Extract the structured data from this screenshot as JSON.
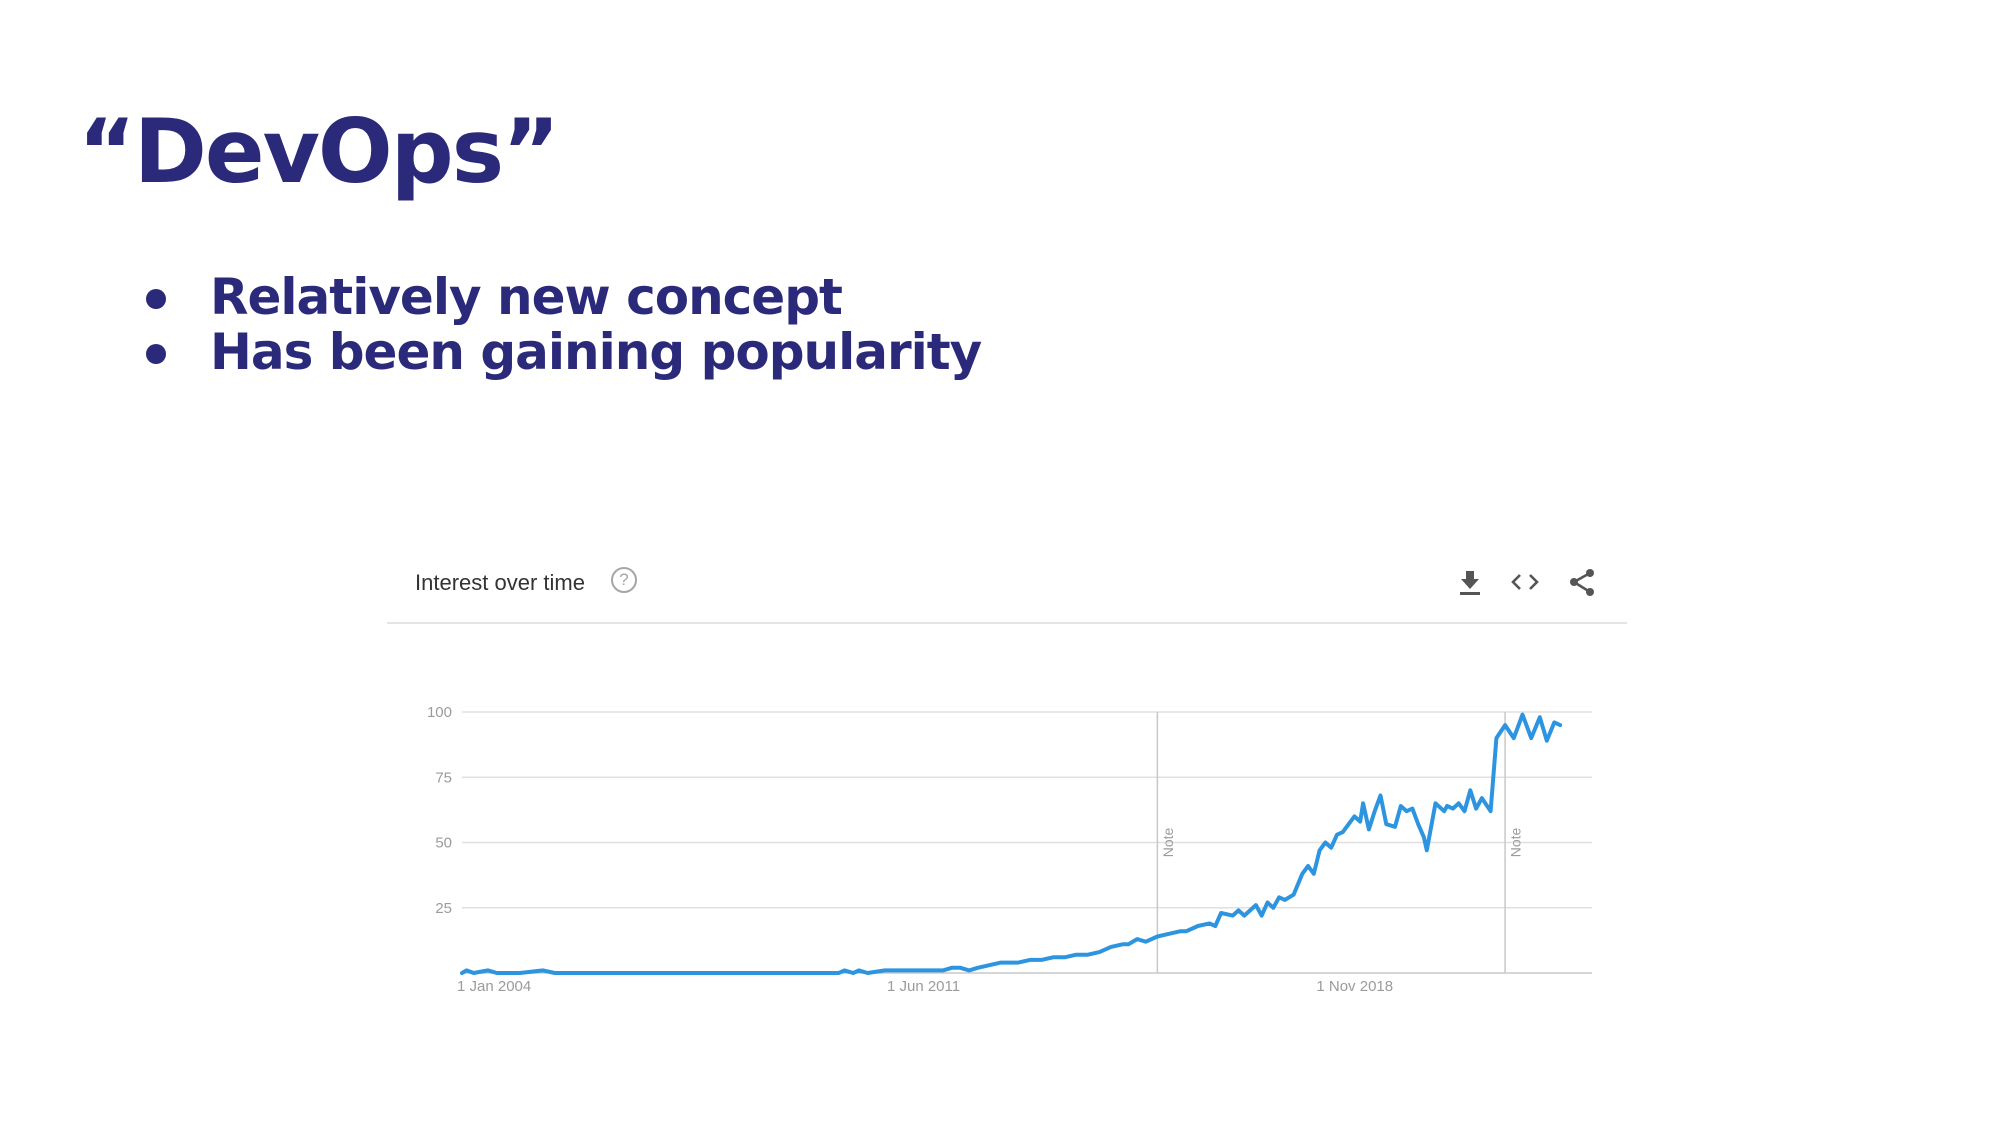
{
  "slide": {
    "title": "“DevOps”",
    "bullets": [
      "Relatively new concept",
      "Has been gaining popularity"
    ]
  },
  "widget": {
    "title": "Interest over time",
    "help_glyph": "?",
    "icons": [
      "download-icon",
      "embed-code-icon",
      "share-icon"
    ]
  },
  "colors": {
    "text": "#2b2a7a",
    "line": "#2d94e0",
    "grid": "#e0e0e0",
    "axis_text": "#9b9b9b"
  },
  "chart_data": {
    "type": "line",
    "title": "Interest over time",
    "xlabel": "",
    "ylabel": "",
    "ylim": [
      0,
      100
    ],
    "yticks": [
      25,
      50,
      75,
      100
    ],
    "xticks": [
      {
        "label": "1 Jan 2004",
        "t": 2004.0
      },
      {
        "label": "1 Jun 2011",
        "t": 2011.42
      },
      {
        "label": "1 Nov 2018",
        "t": 2018.83
      }
    ],
    "xlim": [
      2004.0,
      2023.5
    ],
    "notes": [
      {
        "label": "Note",
        "t": 2016.0
      },
      {
        "label": "Note",
        "t": 2022.0
      }
    ],
    "grid": true,
    "series": [
      {
        "points": [
          [
            2004.0,
            0
          ],
          [
            2004.08,
            1
          ],
          [
            2004.2,
            0
          ],
          [
            2004.45,
            1
          ],
          [
            2004.6,
            0
          ],
          [
            2005.0,
            0
          ],
          [
            2005.4,
            1
          ],
          [
            2005.6,
            0
          ],
          [
            2007.0,
            0
          ],
          [
            2009.0,
            0
          ],
          [
            2010.5,
            0
          ],
          [
            2010.6,
            1
          ],
          [
            2010.75,
            0
          ],
          [
            2010.85,
            1
          ],
          [
            2011.0,
            0
          ],
          [
            2011.3,
            1
          ],
          [
            2011.8,
            1
          ],
          [
            2012.3,
            1
          ],
          [
            2012.45,
            2
          ],
          [
            2012.6,
            2
          ],
          [
            2012.75,
            1
          ],
          [
            2012.9,
            2
          ],
          [
            2013.1,
            3
          ],
          [
            2013.3,
            4
          ],
          [
            2013.6,
            4
          ],
          [
            2013.8,
            5
          ],
          [
            2014.0,
            5
          ],
          [
            2014.2,
            6
          ],
          [
            2014.4,
            6
          ],
          [
            2014.6,
            7
          ],
          [
            2014.8,
            7
          ],
          [
            2015.0,
            8
          ],
          [
            2015.2,
            10
          ],
          [
            2015.4,
            11
          ],
          [
            2015.5,
            11
          ],
          [
            2015.65,
            13
          ],
          [
            2015.8,
            12
          ],
          [
            2016.0,
            14
          ],
          [
            2016.2,
            15
          ],
          [
            2016.4,
            16
          ],
          [
            2016.5,
            16
          ],
          [
            2016.7,
            18
          ],
          [
            2016.9,
            19
          ],
          [
            2017.0,
            18
          ],
          [
            2017.1,
            23
          ],
          [
            2017.3,
            22
          ],
          [
            2017.4,
            24
          ],
          [
            2017.5,
            22
          ],
          [
            2017.6,
            24
          ],
          [
            2017.7,
            26
          ],
          [
            2017.8,
            22
          ],
          [
            2017.9,
            27
          ],
          [
            2018.0,
            25
          ],
          [
            2018.1,
            29
          ],
          [
            2018.2,
            28
          ],
          [
            2018.35,
            30
          ],
          [
            2018.5,
            38
          ],
          [
            2018.6,
            41
          ],
          [
            2018.7,
            38
          ],
          [
            2018.8,
            47
          ],
          [
            2018.9,
            50
          ],
          [
            2019.0,
            48
          ],
          [
            2019.1,
            53
          ],
          [
            2019.2,
            54
          ],
          [
            2019.3,
            57
          ],
          [
            2019.4,
            60
          ],
          [
            2019.5,
            58
          ],
          [
            2019.55,
            65
          ],
          [
            2019.65,
            55
          ],
          [
            2019.75,
            62
          ],
          [
            2019.85,
            68
          ],
          [
            2019.95,
            57
          ],
          [
            2020.1,
            56
          ],
          [
            2020.2,
            64
          ],
          [
            2020.3,
            62
          ],
          [
            2020.4,
            63
          ],
          [
            2020.5,
            57
          ],
          [
            2020.6,
            52
          ],
          [
            2020.65,
            47
          ],
          [
            2020.8,
            65
          ],
          [
            2020.95,
            62
          ],
          [
            2021.0,
            64
          ],
          [
            2021.1,
            63
          ],
          [
            2021.2,
            65
          ],
          [
            2021.3,
            62
          ],
          [
            2021.4,
            70
          ],
          [
            2021.5,
            63
          ],
          [
            2021.6,
            67
          ],
          [
            2021.75,
            62
          ],
          [
            2021.85,
            90
          ],
          [
            2022.0,
            95
          ],
          [
            2022.15,
            90
          ],
          [
            2022.3,
            99
          ],
          [
            2022.45,
            90
          ],
          [
            2022.6,
            98
          ],
          [
            2022.72,
            89
          ],
          [
            2022.85,
            96
          ],
          [
            2022.95,
            95
          ]
        ]
      }
    ]
  }
}
